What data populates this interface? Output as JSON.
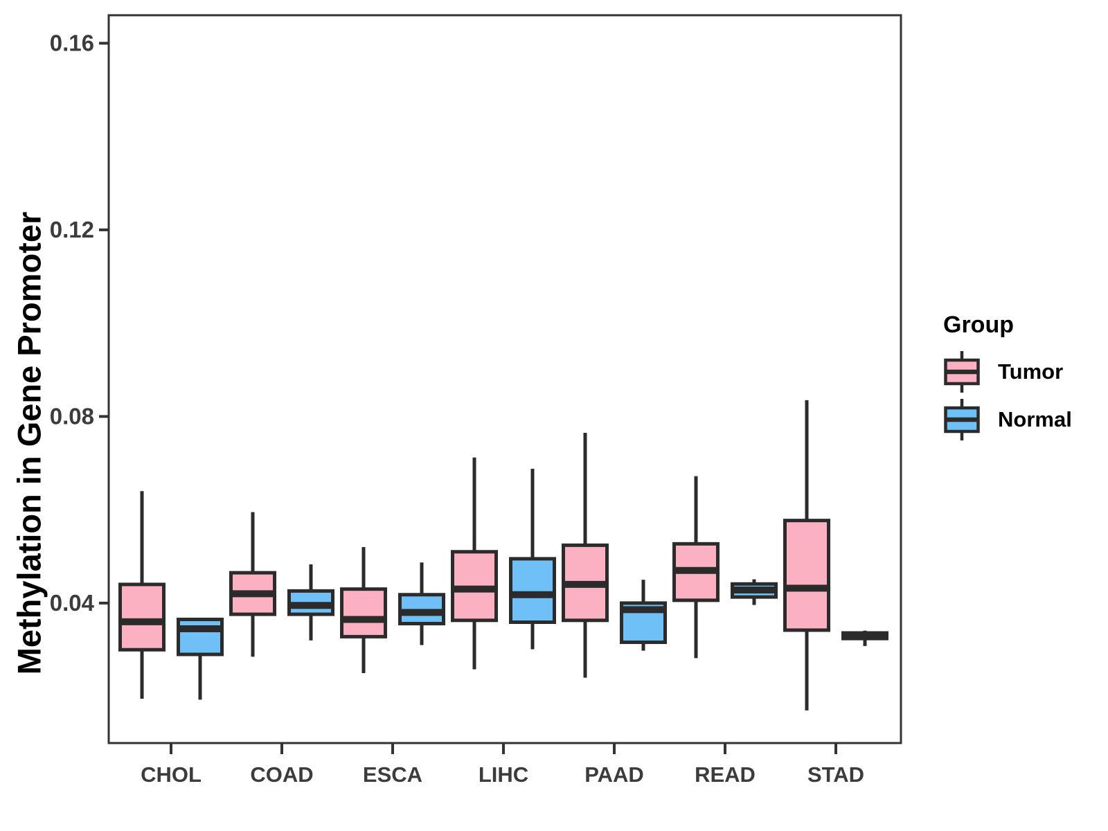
{
  "chart_data": {
    "type": "grouped_boxplot",
    "title": "",
    "xlabel": "",
    "ylabel": "Methylation in Gene Promoter",
    "ylim": [
      0.01,
      0.166
    ],
    "yticks": [
      "0.04",
      "0.08",
      "0.12",
      "0.16"
    ],
    "grid": false,
    "categories": [
      "CHOL",
      "COAD",
      "ESCA",
      "LIHC",
      "PAAD",
      "READ",
      "STAD"
    ],
    "legend": {
      "title": "Group",
      "position": "right"
    },
    "groups": [
      {
        "name": "Tumor",
        "color": "#FBB1C2"
      },
      {
        "name": "Normal",
        "color": "#6EC0F6"
      }
    ],
    "series": [
      {
        "group": "Tumor",
        "boxes": [
          {
            "category": "CHOL",
            "min": 0.0195,
            "q1": 0.03,
            "median": 0.036,
            "q3": 0.044,
            "max": 0.064
          },
          {
            "category": "COAD",
            "min": 0.0285,
            "q1": 0.0376,
            "median": 0.042,
            "q3": 0.0465,
            "max": 0.0595
          },
          {
            "category": "ESCA",
            "min": 0.025,
            "q1": 0.0328,
            "median": 0.0365,
            "q3": 0.043,
            "max": 0.052
          },
          {
            "category": "LIHC",
            "min": 0.0258,
            "q1": 0.0363,
            "median": 0.043,
            "q3": 0.051,
            "max": 0.0712
          },
          {
            "category": "PAAD",
            "min": 0.024,
            "q1": 0.0363,
            "median": 0.044,
            "q3": 0.0524,
            "max": 0.0765
          },
          {
            "category": "READ",
            "min": 0.0282,
            "q1": 0.0406,
            "median": 0.047,
            "q3": 0.0527,
            "max": 0.0672
          },
          {
            "category": "STAD",
            "min": 0.017,
            "q1": 0.0342,
            "median": 0.0432,
            "q3": 0.0577,
            "max": 0.0835
          }
        ]
      },
      {
        "group": "Normal",
        "boxes": [
          {
            "category": "CHOL",
            "min": 0.0193,
            "q1": 0.029,
            "median": 0.0345,
            "q3": 0.0365,
            "max": 0.0365
          },
          {
            "category": "COAD",
            "min": 0.032,
            "q1": 0.0376,
            "median": 0.0395,
            "q3": 0.0426,
            "max": 0.0483
          },
          {
            "category": "ESCA",
            "min": 0.031,
            "q1": 0.0356,
            "median": 0.038,
            "q3": 0.0418,
            "max": 0.0487
          },
          {
            "category": "LIHC",
            "min": 0.0301,
            "q1": 0.0359,
            "median": 0.0418,
            "q3": 0.0495,
            "max": 0.0688
          },
          {
            "category": "PAAD",
            "min": 0.0298,
            "q1": 0.0316,
            "median": 0.0386,
            "q3": 0.04,
            "max": 0.045
          },
          {
            "category": "READ",
            "min": 0.0396,
            "q1": 0.0413,
            "median": 0.0428,
            "q3": 0.0441,
            "max": 0.0451
          },
          {
            "category": "STAD",
            "min": 0.0308,
            "q1": 0.0324,
            "median": 0.033,
            "q3": 0.0336,
            "max": 0.0341
          }
        ]
      }
    ],
    "style": {
      "box_border_color": "#2B2B2B",
      "axis_text_color": "#3C3C3C",
      "axis_title_color": "#000000",
      "panel_border_color": "#333333",
      "background": "#FFFFFF"
    }
  }
}
